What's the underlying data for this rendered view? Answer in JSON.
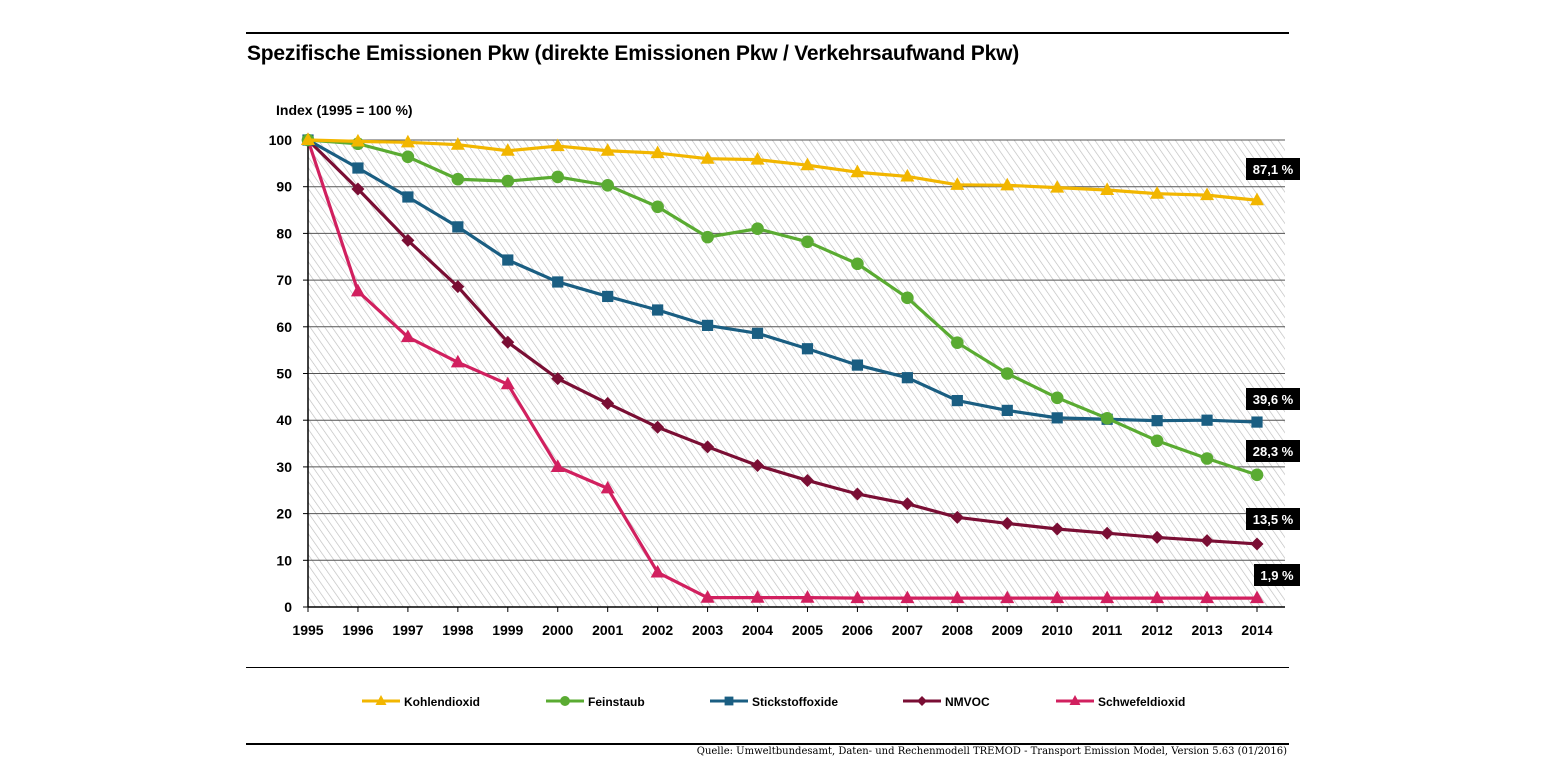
{
  "title": "Spezifische Emissionen Pkw (direkte Emissionen Pkw / Verkehrsaufwand Pkw)",
  "source": "Quelle: Umweltbundesamt, Daten- und Rechenmodell TREMOD - Transport Emission Model, Version 5.63 (01/2016)",
  "chart_data": {
    "type": "line",
    "title": "Spezifische Emissionen Pkw (direkte Emissionen Pkw / Verkehrsaufwand Pkw)",
    "ylabel": "Index (1995 = 100 %)",
    "xlabel": "",
    "ylim": [
      0,
      100
    ],
    "yticks": [
      0,
      10,
      20,
      30,
      40,
      50,
      60,
      70,
      80,
      90,
      100
    ],
    "grid": true,
    "legend_position": "bottom",
    "x": [
      1995,
      1996,
      1997,
      1998,
      1999,
      2000,
      2001,
      2002,
      2003,
      2004,
      2005,
      2006,
      2007,
      2008,
      2009,
      2010,
      2011,
      2012,
      2013,
      2014
    ],
    "series": [
      {
        "name": "Kohlendioxid",
        "color": "#f2b600",
        "marker": "triangle",
        "end_label": "87,1 %",
        "values": [
          100,
          99.7,
          99.5,
          99.0,
          97.7,
          98.7,
          97.7,
          97.2,
          96.0,
          95.8,
          94.6,
          93.1,
          92.2,
          90.4,
          90.3,
          89.8,
          89.3,
          88.5,
          88.2,
          87.1
        ]
      },
      {
        "name": "Feinstaub",
        "color": "#5aab32",
        "marker": "circle",
        "end_label": "28,3 %",
        "values": [
          100,
          99.2,
          96.4,
          91.6,
          91.2,
          92.1,
          90.3,
          85.7,
          79.2,
          81.0,
          78.2,
          73.5,
          66.2,
          56.6,
          50.0,
          44.8,
          40.4,
          35.6,
          31.8,
          28.3
        ]
      },
      {
        "name": "Stickstoffoxide",
        "color": "#1a5e82",
        "marker": "square",
        "end_label": "39,6 %",
        "values": [
          100,
          94.0,
          87.8,
          81.4,
          74.3,
          69.6,
          66.5,
          63.6,
          60.3,
          58.6,
          55.3,
          51.8,
          49.1,
          44.2,
          42.1,
          40.5,
          40.2,
          39.9,
          40.0,
          39.6
        ]
      },
      {
        "name": "NMVOC",
        "color": "#7a0e34",
        "marker": "diamond",
        "end_label": "13,5 %",
        "values": [
          100,
          89.5,
          78.5,
          68.6,
          56.7,
          48.9,
          43.6,
          38.5,
          34.3,
          30.3,
          27.1,
          24.2,
          22.1,
          19.2,
          17.9,
          16.7,
          15.8,
          14.9,
          14.2,
          13.5
        ]
      },
      {
        "name": "Schwefeldioxid",
        "color": "#d1205f",
        "marker": "triangle",
        "end_label": "1,9 %",
        "values": [
          100,
          67.6,
          57.8,
          52.4,
          47.7,
          30.0,
          25.4,
          7.4,
          2.0,
          2.0,
          2.0,
          1.9,
          1.9,
          1.9,
          1.9,
          1.9,
          1.9,
          1.9,
          1.9,
          1.9
        ]
      }
    ]
  }
}
